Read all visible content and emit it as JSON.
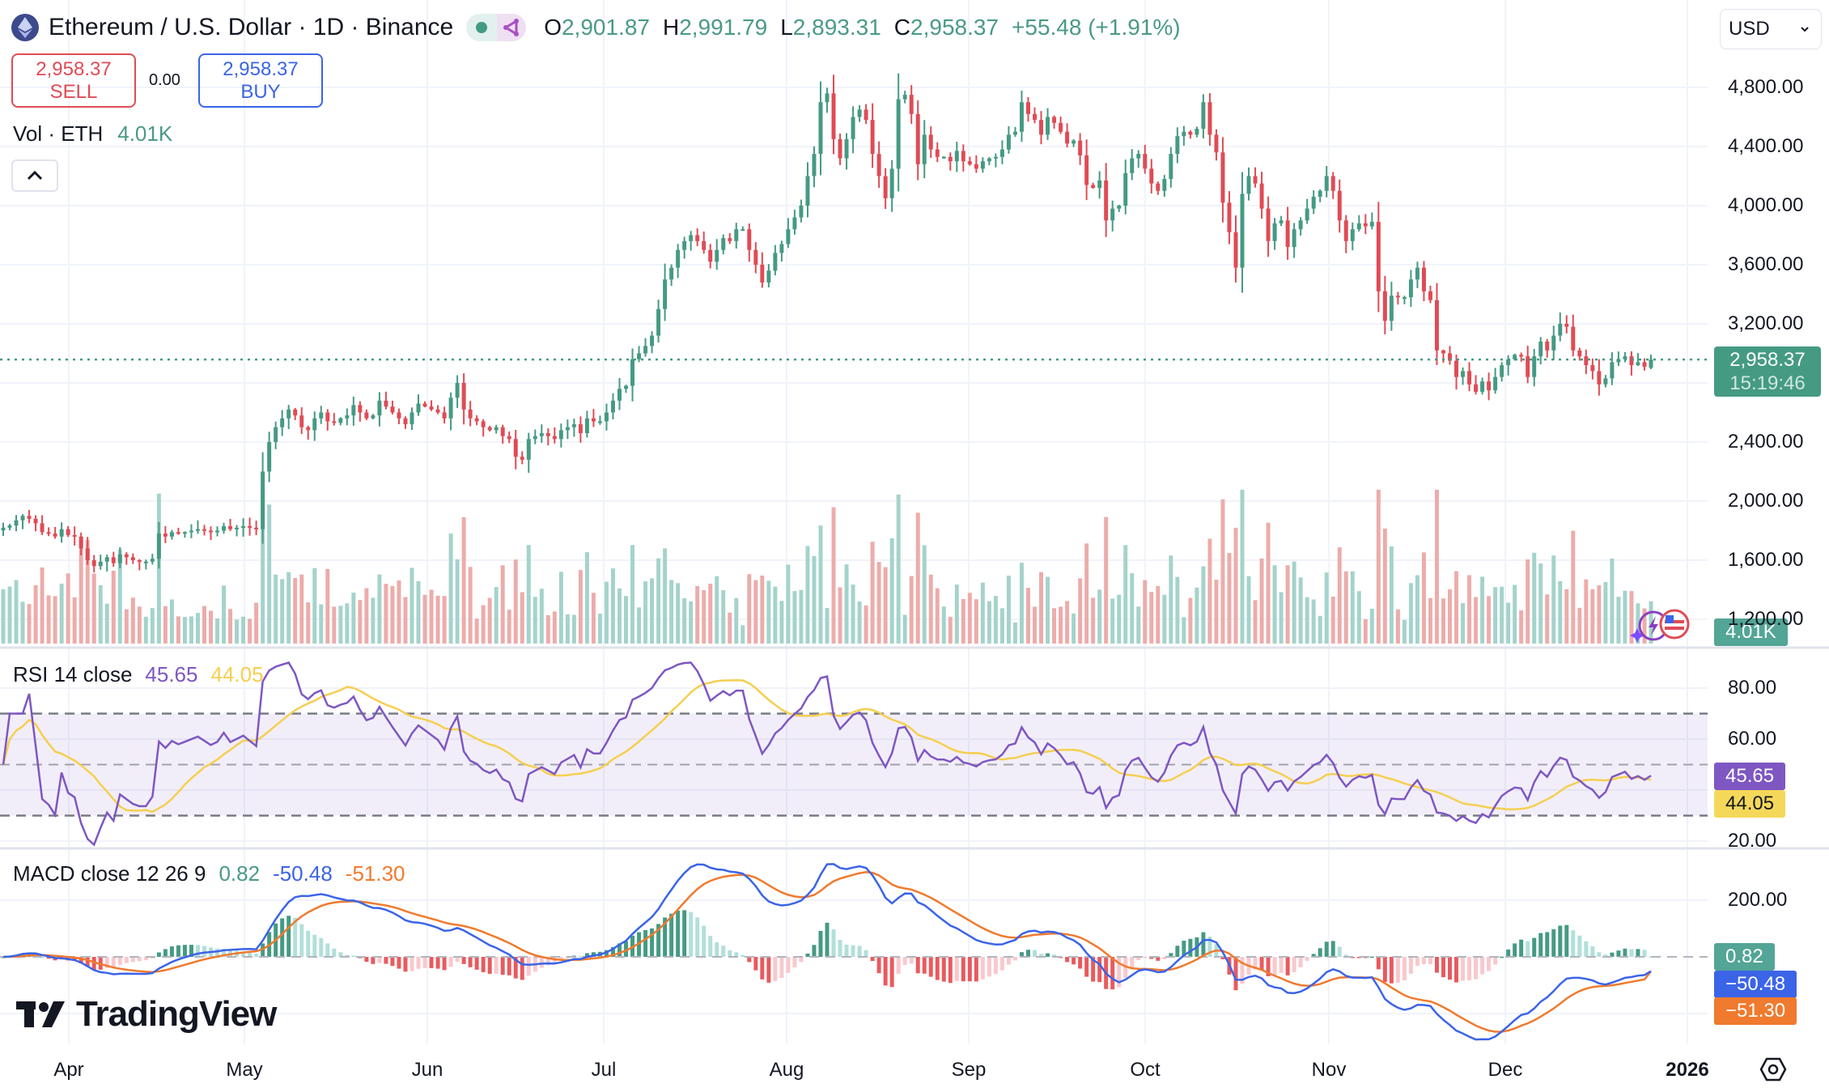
{
  "header": {
    "symbol_title": "Ethereum / U.S. Dollar · 1D · Binance",
    "icon": "ethereum-logo-icon",
    "status_pill": [
      "market-open-dot-icon",
      "data-sharing-icon"
    ],
    "ohlc": {
      "o_label": "O",
      "o": "2,901.87",
      "h_label": "H",
      "h": "2,991.79",
      "l_label": "L",
      "l": "2,893.31",
      "c_label": "C",
      "c": "2,958.37",
      "change": "+55.48 (+1.91%)"
    }
  },
  "trade": {
    "sell_price": "2,958.37",
    "sell_label": "SELL",
    "spread": "0.00",
    "buy_price": "2,958.37",
    "buy_label": "BUY"
  },
  "volume_legend": {
    "label": "Vol · ETH",
    "value": "4.01K"
  },
  "collapse_button": "^",
  "currency_select": {
    "value": "USD"
  },
  "price_axis": [
    "4,800.00",
    "4,400.00",
    "4,000.00",
    "3,600.00",
    "3,200.00",
    "2,400.00",
    "2,000.00",
    "1,600.00",
    "1,200.00"
  ],
  "last_price_tag": {
    "price": "2,958.37",
    "countdown": "15:19:46"
  },
  "volume_tag": "4.01K",
  "rsi": {
    "label": "RSI 14 close",
    "value": "45.65",
    "ma_value": "44.05",
    "axis": [
      "80.00",
      "60.00",
      "20.00"
    ]
  },
  "macd": {
    "label": "MACD close 12 26 9",
    "hist": "0.82",
    "macd": "-50.48",
    "signal": "-51.30",
    "hist_tag": "0.82",
    "macd_tag": "−50.48",
    "signal_tag": "−51.30",
    "axis": [
      "200.00"
    ]
  },
  "time_axis": [
    "Apr",
    "May",
    "Jun",
    "Jul",
    "Aug",
    "Sep",
    "Oct",
    "Nov",
    "Dec",
    "2026"
  ],
  "watermark": "TradingView",
  "colors": {
    "up": "#459a83",
    "down": "#e04b55",
    "vol_up": "#a4d3cb",
    "vol_down": "#ecacaa",
    "rsi": "#7e57c2",
    "rsi_ma": "#f5cf4f",
    "macd": "#3b64e8",
    "signal": "#f07a2e"
  },
  "chart_data": [
    {
      "type": "candlestick",
      "title": "Ethereum / U.S. Dollar · 1D · Binance",
      "ylabel": "USD",
      "ylim": [
        1200,
        4950
      ],
      "x_ticks": [
        "Apr",
        "May",
        "Jun",
        "Jul",
        "Aug",
        "Sep",
        "Oct",
        "Nov",
        "Dec",
        "2026"
      ],
      "y_ticks": [
        1200,
        1600,
        2000,
        2400,
        3200,
        3600,
        4000,
        4400,
        4800
      ],
      "last": {
        "open": 2901.87,
        "high": 2991.79,
        "low": 2893.31,
        "close": 2958.37,
        "change": 55.48,
        "change_pct": 1.91
      },
      "monthly_close_approx": [
        {
          "month": "Mar-end",
          "close": 1820
        },
        {
          "month": "Apr",
          "close": 1800
        },
        {
          "month": "May",
          "close": 2530
        },
        {
          "month": "Jun",
          "close": 2480
        },
        {
          "month": "Jul",
          "close": 3700
        },
        {
          "month": "Aug",
          "close": 4380
        },
        {
          "month": "Sep",
          "close": 4150
        },
        {
          "month": "Oct",
          "close": 3850
        },
        {
          "month": "Nov",
          "close": 2990
        },
        {
          "month": "Dec-late",
          "close": 2958
        }
      ],
      "extremes": {
        "low_apr": 1400,
        "high_aug": 4950,
        "low_nov": 2620
      }
    },
    {
      "type": "bar",
      "title": "Vol · ETH",
      "last": "4.01K"
    },
    {
      "type": "line",
      "title": "RSI 14 close",
      "series": [
        {
          "name": "RSI",
          "last": 45.65
        },
        {
          "name": "RSI MA",
          "last": 44.05
        }
      ],
      "bands": [
        30,
        50,
        70
      ],
      "y_ticks": [
        20,
        60,
        80
      ]
    },
    {
      "type": "line",
      "title": "MACD close 12 26 9",
      "series": [
        {
          "name": "Histogram",
          "last": 0.82
        },
        {
          "name": "MACD",
          "last": -50.48
        },
        {
          "name": "Signal",
          "last": -51.3
        }
      ],
      "y_ticks": [
        200
      ]
    }
  ],
  "closes": [
    1820,
    1835,
    1870,
    1900,
    1880,
    1850,
    1790,
    1780,
    1760,
    1810,
    1770,
    1760,
    1680,
    1600,
    1560,
    1590,
    1620,
    1580,
    1640,
    1620,
    1600,
    1590,
    1590,
    1610,
    1780,
    1760,
    1790,
    1780,
    1790,
    1800,
    1810,
    1800,
    1790,
    1800,
    1830,
    1810,
    1820,
    1830,
    1820,
    1810,
    2200,
    2400,
    2500,
    2560,
    2620,
    2580,
    2500,
    2480,
    2560,
    2600,
    2540,
    2530,
    2560,
    2580,
    2650,
    2600,
    2560,
    2580,
    2680,
    2640,
    2600,
    2560,
    2520,
    2600,
    2660,
    2640,
    2620,
    2600,
    2560,
    2700,
    2800,
    2620,
    2560,
    2540,
    2500,
    2480,
    2500,
    2440,
    2420,
    2300,
    2280,
    2420,
    2440,
    2460,
    2440,
    2420,
    2480,
    2500,
    2520,
    2460,
    2560,
    2540,
    2540,
    2600,
    2680,
    2760,
    2780,
    2960,
    3000,
    3050,
    3120,
    3300,
    3500,
    3580,
    3700,
    3760,
    3800,
    3760,
    3700,
    3620,
    3700,
    3780,
    3760,
    3840,
    3840,
    3700,
    3600,
    3480,
    3560,
    3680,
    3740,
    3840,
    3920,
    4000,
    4200,
    4350,
    4700,
    4760,
    4450,
    4320,
    4450,
    4600,
    4650,
    4580,
    4350,
    4200,
    4050,
    4250,
    4720,
    4750,
    4620,
    4280,
    4480,
    4380,
    4330,
    4330,
    4300,
    4370,
    4300,
    4280,
    4250,
    4300,
    4320,
    4330,
    4380,
    4480,
    4500,
    4700,
    4620,
    4580,
    4480,
    4600,
    4560,
    4500,
    4420,
    4440,
    4340,
    4140,
    4120,
    4170,
    3900,
    3980,
    4000,
    4220,
    4320,
    4350,
    4250,
    4150,
    4100,
    4180,
    4350,
    4470,
    4500,
    4480,
    4520,
    4700,
    4480,
    4360,
    4020,
    3820,
    3580,
    4080,
    4200,
    4150,
    3980,
    3760,
    3880,
    3900,
    3720,
    3840,
    3900,
    3980,
    4060,
    4100,
    4200,
    4100,
    3900,
    3760,
    3840,
    3880,
    3860,
    3890,
    3420,
    3220,
    3390,
    3380,
    3380,
    3500,
    3580,
    3420,
    3360,
    3020,
    3000,
    2950,
    2840,
    2880,
    2790,
    2740,
    2810,
    2750,
    2840,
    2920,
    2960,
    2990,
    2980,
    2840,
    2980,
    3080,
    3020,
    3120,
    3200,
    3180,
    3020,
    2980,
    2920,
    2880,
    2790,
    2830,
    2940,
    2960,
    2980,
    2920,
    2940,
    2910,
    2958
  ]
}
